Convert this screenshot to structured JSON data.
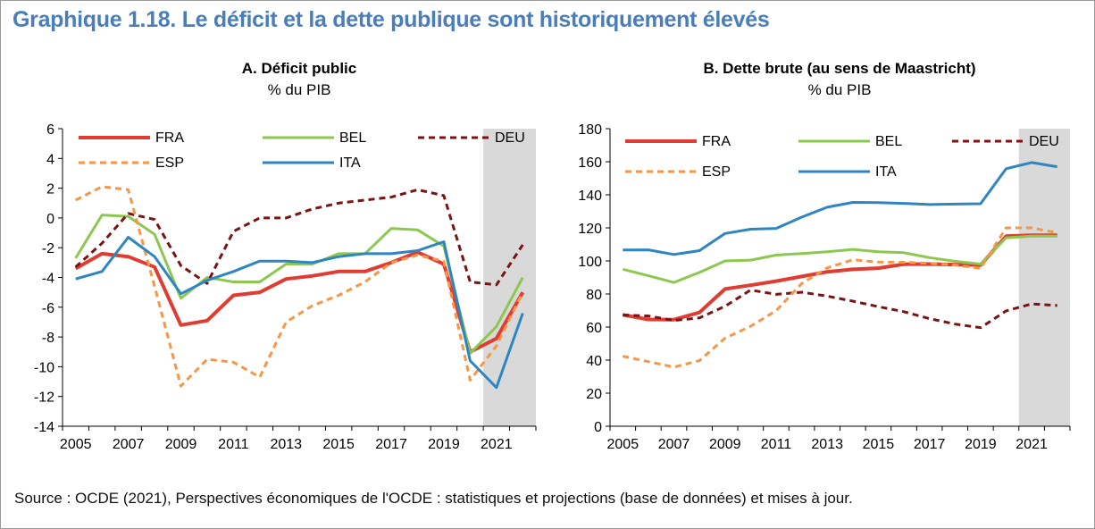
{
  "title": "Graphique 1.18. Le déficit et la dette publique sont historiquement élevés",
  "source": "Source : OCDE (2021), Perspectives économiques de l'OCDE : statistiques et projections (base de données) et mises à jour.",
  "colors": {
    "title": "#4a7ebb",
    "FRA": "#e03c31",
    "BEL": "#8cc850",
    "DEU": "#7a1414",
    "ESP": "#f79646",
    "ITA": "#2e86c1",
    "projection_shade": "#d9d9d9"
  },
  "chart_data": [
    {
      "type": "line",
      "title": "A. Déficit public",
      "subtitle": "% du PIB",
      "x": [
        2005,
        2006,
        2007,
        2008,
        2009,
        2010,
        2011,
        2012,
        2013,
        2014,
        2015,
        2016,
        2017,
        2018,
        2019,
        2020,
        2021,
        2022
      ],
      "xticks": [
        "2005",
        "2007",
        "2009",
        "2011",
        "2013",
        "2015",
        "2017",
        "2019",
        "2021"
      ],
      "xlim": [
        2004.5,
        2022.5
      ],
      "ylim": [
        -14,
        6
      ],
      "yticks": [
        "6",
        "4",
        "2",
        "0",
        "-2",
        "-4",
        "-6",
        "-8",
        "-10",
        "-12",
        "-14"
      ],
      "grid": false,
      "projection_start": 2021,
      "legend": [
        [
          "FRA",
          "BEL",
          "DEU"
        ],
        [
          "ESP",
          "ITA"
        ]
      ],
      "series": [
        {
          "name": "FRA",
          "style": "solid-thick",
          "values": [
            -3.4,
            -2.4,
            -2.6,
            -3.3,
            -7.2,
            -6.9,
            -5.2,
            -5.0,
            -4.1,
            -3.9,
            -3.6,
            -3.6,
            -3.0,
            -2.3,
            -3.1,
            -9.0,
            -8.1,
            -5.0
          ]
        },
        {
          "name": "BEL",
          "style": "solid",
          "values": [
            -2.7,
            0.2,
            0.1,
            -1.1,
            -5.4,
            -4.0,
            -4.3,
            -4.3,
            -3.1,
            -3.1,
            -2.4,
            -2.4,
            -0.7,
            -0.8,
            -1.9,
            -9.1,
            -7.3,
            -4.0
          ]
        },
        {
          "name": "DEU",
          "style": "dashed",
          "values": [
            -3.3,
            -1.7,
            0.3,
            -0.1,
            -3.2,
            -4.4,
            -0.9,
            0.0,
            0.0,
            0.6,
            1.0,
            1.2,
            1.4,
            1.9,
            1.5,
            -4.3,
            -4.5,
            -1.8
          ]
        },
        {
          "name": "ESP",
          "style": "dashed",
          "values": [
            1.2,
            2.1,
            1.9,
            -4.6,
            -11.3,
            -9.5,
            -9.7,
            -10.7,
            -7.0,
            -5.9,
            -5.2,
            -4.3,
            -3.0,
            -2.5,
            -2.9,
            -10.9,
            -8.6,
            -5.0
          ]
        },
        {
          "name": "ITA",
          "style": "solid",
          "values": [
            -4.1,
            -3.6,
            -1.3,
            -2.6,
            -5.1,
            -4.2,
            -3.6,
            -2.9,
            -2.9,
            -3.0,
            -2.6,
            -2.4,
            -2.4,
            -2.2,
            -1.6,
            -9.6,
            -11.4,
            -6.4
          ]
        }
      ]
    },
    {
      "type": "line",
      "title": "B. Dette brute (au sens de Maastricht)",
      "subtitle": "% du PIB",
      "x": [
        2005,
        2006,
        2007,
        2008,
        2009,
        2010,
        2011,
        2012,
        2013,
        2014,
        2015,
        2016,
        2017,
        2018,
        2019,
        2020,
        2021,
        2022
      ],
      "xticks": [
        "2005",
        "2007",
        "2009",
        "2011",
        "2013",
        "2015",
        "2017",
        "2019",
        "2021"
      ],
      "xlim": [
        2004.5,
        2022.5
      ],
      "ylim": [
        0,
        180
      ],
      "yticks": [
        "180",
        "160",
        "140",
        "120",
        "100",
        "80",
        "60",
        "40",
        "20",
        "0"
      ],
      "grid": false,
      "projection_start": 2021,
      "legend": [
        [
          "FRA",
          "BEL",
          "DEU"
        ],
        [
          "ESP",
          "ITA"
        ]
      ],
      "series": [
        {
          "name": "FRA",
          "style": "solid-thick",
          "values": [
            67.4,
            64.6,
            64.5,
            68.8,
            83.0,
            85.3,
            87.8,
            90.6,
            93.4,
            94.9,
            95.6,
            98.0,
            98.1,
            97.8,
            97.5,
            115.0,
            115.5,
            115.5
          ]
        },
        {
          "name": "BEL",
          "style": "solid",
          "values": [
            95.0,
            91.0,
            87.0,
            93.0,
            100.0,
            100.5,
            103.5,
            104.5,
            105.5,
            107.0,
            105.5,
            105.0,
            102.0,
            99.8,
            98.1,
            114.0,
            115.0,
            115.0
          ]
        },
        {
          "name": "DEU",
          "style": "dashed",
          "values": [
            67.3,
            66.7,
            64.0,
            65.5,
            72.6,
            82.4,
            79.8,
            81.1,
            78.7,
            75.7,
            72.3,
            69.3,
            65.1,
            61.8,
            59.6,
            69.8,
            74.0,
            73.0
          ]
        },
        {
          "name": "ESP",
          "style": "dashed",
          "values": [
            42.4,
            39.1,
            35.8,
            39.7,
            53.3,
            60.5,
            69.9,
            86.3,
            95.8,
            100.7,
            99.3,
            99.2,
            98.6,
            97.5,
            95.5,
            120.0,
            120.0,
            117.0
          ]
        },
        {
          "name": "ITA",
          "style": "solid",
          "values": [
            106.6,
            106.7,
            103.9,
            106.2,
            116.6,
            119.2,
            119.7,
            126.5,
            132.5,
            135.4,
            135.3,
            134.8,
            134.1,
            134.4,
            134.6,
            155.8,
            159.5,
            157.0
          ]
        }
      ]
    }
  ]
}
